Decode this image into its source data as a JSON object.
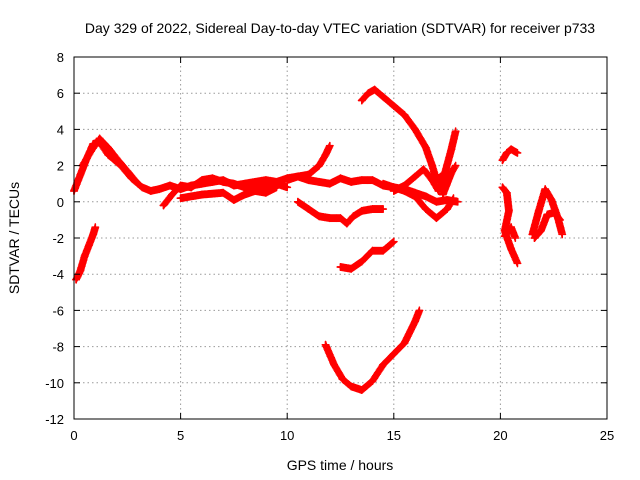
{
  "chart_data": {
    "type": "scatter",
    "title": "Day 329 of 2022, Sidereal Day-to-day VTEC variation (SDTVAR) for receiver p733",
    "xlabel": "GPS time / hours",
    "ylabel": "SDTVAR / TECUs",
    "xlim": [
      0,
      25
    ],
    "ylim": [
      -12,
      8
    ],
    "x_ticks": [
      "0",
      "5",
      "10",
      "15",
      "20",
      "25"
    ],
    "y_ticks": [
      "-12",
      "-10",
      "-8",
      "-6",
      "-4",
      "-2",
      "0",
      "2",
      "4",
      "6",
      "8"
    ],
    "grid": true,
    "marker": "plus",
    "color": "#ff0000",
    "series": [
      {
        "points": [
          [
            0.0,
            0.6
          ],
          [
            0.3,
            1.5
          ],
          [
            0.6,
            2.4
          ],
          [
            0.9,
            3.2
          ],
          [
            1.2,
            3.3
          ],
          [
            1.6,
            2.6
          ],
          [
            2.2,
            2.0
          ],
          [
            2.7,
            1.3
          ],
          [
            3.2,
            0.8
          ],
          [
            3.6,
            0.6
          ],
          [
            4.0,
            0.7
          ],
          [
            4.5,
            0.9
          ],
          [
            5.0,
            0.7
          ],
          [
            5.5,
            0.9
          ],
          [
            6.0,
            1.0
          ],
          [
            6.5,
            1.1
          ],
          [
            7.0,
            1.2
          ],
          [
            7.5,
            0.9
          ],
          [
            8.0,
            1.0
          ],
          [
            8.5,
            1.1
          ],
          [
            9.0,
            1.2
          ],
          [
            9.5,
            1.1
          ],
          [
            10.0,
            1.3
          ],
          [
            10.5,
            1.4
          ],
          [
            11.0,
            1.2
          ],
          [
            11.5,
            1.1
          ],
          [
            12.0,
            1.0
          ],
          [
            12.5,
            1.3
          ],
          [
            13.0,
            1.1
          ],
          [
            13.5,
            1.2
          ],
          [
            14.0,
            1.2
          ],
          [
            14.5,
            0.9
          ],
          [
            15.0,
            0.8
          ],
          [
            15.5,
            0.7
          ],
          [
            16.0,
            0.5
          ],
          [
            16.5,
            0.3
          ],
          [
            17.0,
            0.0
          ],
          [
            17.5,
            0.1
          ],
          [
            18.0,
            0.0
          ]
        ]
      },
      {
        "points": [
          [
            0.1,
            -4.3
          ],
          [
            0.3,
            -3.8
          ],
          [
            0.5,
            -3.0
          ],
          [
            0.7,
            -2.4
          ],
          [
            0.9,
            -1.8
          ],
          [
            1.0,
            -1.4
          ]
        ]
      },
      {
        "points": [
          [
            0.4,
            2.0
          ],
          [
            0.8,
            2.8
          ],
          [
            1.2,
            3.5
          ],
          [
            1.6,
            3.0
          ],
          [
            2.0,
            2.4
          ],
          [
            2.5,
            1.7
          ],
          [
            3.0,
            1.0
          ]
        ]
      },
      {
        "points": [
          [
            4.2,
            -0.2
          ],
          [
            4.6,
            0.4
          ],
          [
            5.0,
            0.9
          ],
          [
            5.5,
            0.8
          ],
          [
            6.0,
            1.2
          ],
          [
            6.5,
            1.3
          ],
          [
            7.0,
            1.1
          ],
          [
            7.5,
            1.0
          ],
          [
            8.0,
            0.8
          ],
          [
            8.5,
            1.0
          ],
          [
            9.0,
            0.9
          ],
          [
            9.5,
            1.0
          ],
          [
            10.0,
            0.8
          ]
        ]
      },
      {
        "points": [
          [
            5.0,
            0.2
          ],
          [
            6.0,
            0.4
          ],
          [
            7.0,
            0.5
          ],
          [
            7.5,
            0.1
          ],
          [
            8.0,
            0.4
          ],
          [
            8.5,
            0.6
          ],
          [
            9.0,
            0.5
          ],
          [
            9.5,
            0.8
          ]
        ]
      },
      {
        "points": [
          [
            10.0,
            1.2
          ],
          [
            10.5,
            1.4
          ],
          [
            11.0,
            1.5
          ],
          [
            11.5,
            2.0
          ],
          [
            11.8,
            2.6
          ],
          [
            12.0,
            3.1
          ]
        ]
      },
      {
        "points": [
          [
            10.5,
            0.0
          ],
          [
            11.0,
            -0.4
          ],
          [
            11.5,
            -0.8
          ],
          [
            12.0,
            -0.9
          ],
          [
            12.5,
            -0.9
          ],
          [
            12.8,
            -1.2
          ],
          [
            13.1,
            -0.8
          ],
          [
            13.5,
            -0.5
          ],
          [
            14.0,
            -0.4
          ],
          [
            14.5,
            -0.4
          ]
        ]
      },
      {
        "points": [
          [
            12.5,
            -3.6
          ],
          [
            13.0,
            -3.7
          ],
          [
            13.5,
            -3.3
          ],
          [
            14.0,
            -2.7
          ],
          [
            14.5,
            -2.7
          ],
          [
            15.0,
            -2.2
          ]
        ]
      },
      {
        "points": [
          [
            11.8,
            -7.9
          ],
          [
            12.2,
            -9.0
          ],
          [
            12.6,
            -9.8
          ],
          [
            13.0,
            -10.2
          ],
          [
            13.5,
            -10.4
          ],
          [
            14.0,
            -9.9
          ],
          [
            14.5,
            -9.0
          ],
          [
            15.0,
            -8.4
          ],
          [
            15.5,
            -7.8
          ],
          [
            16.0,
            -6.6
          ],
          [
            16.2,
            -6.0
          ]
        ]
      },
      {
        "points": [
          [
            13.5,
            5.6
          ],
          [
            13.8,
            6.0
          ],
          [
            14.1,
            6.2
          ],
          [
            14.5,
            5.8
          ],
          [
            15.0,
            5.3
          ],
          [
            15.5,
            4.8
          ],
          [
            16.0,
            4.0
          ],
          [
            16.5,
            3.0
          ],
          [
            16.8,
            2.0
          ],
          [
            17.0,
            1.2
          ],
          [
            17.2,
            1.4
          ]
        ]
      },
      {
        "points": [
          [
            14.5,
            1.0
          ],
          [
            15.0,
            0.8
          ],
          [
            15.5,
            0.6
          ],
          [
            16.0,
            0.3
          ],
          [
            16.5,
            -0.4
          ],
          [
            17.0,
            -0.9
          ],
          [
            17.5,
            -0.4
          ],
          [
            17.8,
            0.2
          ]
        ]
      },
      {
        "points": [
          [
            15.0,
            0.6
          ],
          [
            15.5,
            0.9
          ],
          [
            16.0,
            1.4
          ],
          [
            16.4,
            1.8
          ],
          [
            16.8,
            1.2
          ],
          [
            17.1,
            0.6
          ],
          [
            17.4,
            1.6
          ],
          [
            17.7,
            2.9
          ],
          [
            17.9,
            3.9
          ]
        ]
      },
      {
        "points": [
          [
            17.3,
            0.4
          ],
          [
            17.5,
            1.0
          ],
          [
            17.7,
            1.6
          ],
          [
            17.9,
            2.0
          ]
        ]
      },
      {
        "points": [
          [
            20.1,
            2.3
          ],
          [
            20.3,
            2.7
          ],
          [
            20.5,
            2.9
          ],
          [
            20.8,
            2.7
          ]
        ]
      },
      {
        "points": [
          [
            20.1,
            0.8
          ],
          [
            20.3,
            0.5
          ],
          [
            20.4,
            -0.5
          ],
          [
            20.2,
            -1.6
          ],
          [
            20.5,
            -2.6
          ],
          [
            20.8,
            -3.4
          ]
        ]
      },
      {
        "points": [
          [
            20.2,
            -1.9
          ],
          [
            20.5,
            -1.4
          ],
          [
            20.7,
            -2.0
          ]
        ]
      },
      {
        "points": [
          [
            21.5,
            -1.8
          ],
          [
            21.8,
            -0.5
          ],
          [
            22.1,
            0.7
          ],
          [
            22.4,
            0.1
          ],
          [
            22.7,
            -0.9
          ],
          [
            22.9,
            -1.8
          ]
        ]
      },
      {
        "points": [
          [
            21.6,
            -2.0
          ],
          [
            21.9,
            -1.6
          ],
          [
            22.2,
            -0.7
          ],
          [
            22.5,
            -0.6
          ],
          [
            22.8,
            -1.0
          ]
        ]
      }
    ]
  }
}
